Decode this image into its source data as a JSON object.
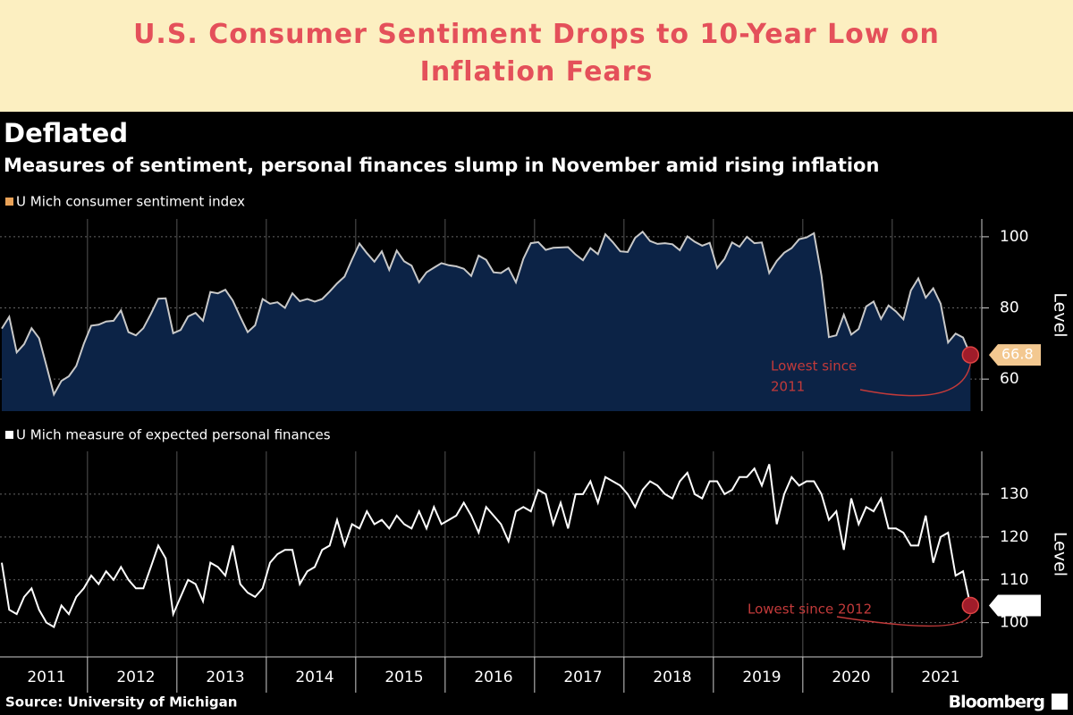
{
  "header": {
    "title": [
      "U.S. Consumer Sentiment Drops to 10-Year Low on",
      "Inflation Fears"
    ]
  },
  "chart_title": "Deflated",
  "chart_subtitle": "Measures of sentiment, personal finances slump in November amid rising inflation",
  "source": "Source: University of Michigan",
  "brand": "Bloomberg",
  "chart_data": [
    {
      "type": "area",
      "categories": [
        null,
        null,
        null,
        null,
        null,
        null,
        null,
        null,
        null,
        null,
        null,
        null,
        null,
        null,
        null,
        null,
        null,
        null,
        null,
        null,
        null,
        null,
        null,
        null,
        null,
        null,
        null,
        null,
        null,
        null,
        null,
        null,
        null,
        null,
        null,
        null,
        null,
        null,
        null,
        null,
        null,
        null,
        null,
        null,
        null,
        null,
        null,
        null,
        null,
        null,
        null,
        null,
        null,
        null,
        null,
        null,
        null,
        null,
        null,
        null,
        null,
        null,
        null,
        null,
        null,
        null,
        null,
        null,
        null,
        null,
        null,
        null,
        null,
        null,
        null,
        null,
        null,
        null,
        null,
        null,
        null,
        null,
        null,
        null,
        null,
        null,
        null,
        null,
        null,
        null,
        null,
        null,
        null,
        null,
        null,
        null,
        null,
        null,
        null,
        null,
        null,
        null,
        null,
        null,
        null,
        null,
        null,
        null,
        null,
        null,
        null,
        null,
        null,
        null,
        null,
        null,
        null,
        null,
        null,
        null,
        null,
        null,
        null,
        null,
        null,
        null,
        null,
        null,
        null,
        null,
        null
      ],
      "series": [
        {
          "name": "U Mich consumer sentiment index",
          "color": "#e9a258",
          "line_color": "#c9c9c9",
          "fill_color": "#0c2346",
          "values": [
            74.2,
            77.5,
            67.5,
            69.8,
            74.3,
            71.5,
            63.7,
            55.7,
            59.5,
            60.8,
            63.7,
            69.9,
            75.0,
            75.3,
            76.2,
            76.4,
            79.3,
            73.2,
            72.3,
            74.3,
            78.3,
            82.6,
            82.7,
            72.9,
            73.8,
            77.6,
            78.6,
            76.4,
            84.5,
            84.1,
            85.1,
            82.1,
            77.5,
            73.2,
            75.1,
            82.5,
            81.2,
            81.6,
            80.0,
            84.1,
            81.9,
            82.5,
            81.8,
            82.5,
            84.6,
            86.9,
            88.8,
            93.6,
            98.1,
            95.4,
            93.0,
            95.9,
            90.7,
            96.1,
            93.1,
            91.9,
            87.2,
            90.0,
            91.3,
            92.6,
            92.0,
            91.7,
            91.0,
            89.0,
            94.7,
            93.5,
            90.0,
            89.8,
            91.2,
            87.2,
            93.8,
            98.2,
            98.5,
            96.3,
            96.9,
            97.0,
            97.1,
            95.0,
            93.4,
            96.8,
            95.1,
            100.7,
            98.5,
            95.9,
            95.7,
            99.7,
            101.4,
            98.8,
            98.0,
            98.2,
            97.9,
            96.2,
            100.1,
            98.6,
            97.5,
            98.3,
            91.2,
            93.8,
            98.4,
            97.2,
            100.0,
            98.2,
            98.4,
            89.8,
            93.2,
            95.5,
            96.8,
            99.3,
            99.8,
            101.0,
            89.1,
            71.8,
            72.3,
            78.1,
            72.5,
            74.1,
            80.4,
            81.8,
            76.9,
            80.7,
            79.0,
            76.8,
            84.9,
            88.3,
            82.9,
            85.5,
            81.2,
            70.3,
            72.8,
            71.7,
            66.8
          ]
        }
      ],
      "ylim": [
        51,
        105
      ],
      "yticks": [
        60,
        80,
        100
      ],
      "ylabel": "Level",
      "grid": true,
      "annotation": [
        "Lowest since",
        "2011"
      ],
      "annotation_color": "#c23a3a",
      "callout_color": "#f3c890"
    },
    {
      "type": "line",
      "categories": [
        null,
        null,
        null,
        null,
        null,
        null,
        "2011",
        null,
        null,
        null,
        null,
        null,
        null,
        null,
        null,
        null,
        null,
        null,
        "2012",
        null,
        null,
        null,
        null,
        null,
        null,
        null,
        null,
        null,
        null,
        null,
        "2013",
        null,
        null,
        null,
        null,
        null,
        null,
        null,
        null,
        null,
        null,
        null,
        "2014",
        null,
        null,
        null,
        null,
        null,
        null,
        null,
        null,
        null,
        null,
        null,
        "2015",
        null,
        null,
        null,
        null,
        null,
        null,
        null,
        null,
        null,
        null,
        null,
        "2016",
        null,
        null,
        null,
        null,
        null,
        null,
        null,
        null,
        null,
        null,
        null,
        "2017",
        null,
        null,
        null,
        null,
        null,
        null,
        null,
        null,
        null,
        null,
        null,
        "2018",
        null,
        null,
        null,
        null,
        null,
        null,
        null,
        null,
        null,
        null,
        null,
        "2019",
        null,
        null,
        null,
        null,
        null,
        null,
        null,
        null,
        null,
        null,
        null,
        "2020",
        null,
        null,
        null,
        null,
        null,
        null,
        null,
        null,
        null,
        null,
        null,
        "2021",
        null,
        null,
        null,
        null
      ],
      "series": [
        {
          "name": "U Mich measure of expected personal finances",
          "color": "#ffffff",
          "line_color": "#ffffff",
          "values": [
            114,
            103,
            102,
            106,
            108,
            103,
            100,
            99,
            104,
            102,
            106,
            108,
            111,
            109,
            112,
            110,
            113,
            110,
            108,
            108,
            113,
            118,
            115,
            102,
            106,
            110,
            109,
            105,
            114,
            113,
            111,
            118,
            109,
            107,
            106,
            108,
            114,
            116,
            117,
            117,
            109,
            112,
            113,
            117,
            118,
            124,
            118,
            123,
            122,
            126,
            123,
            124,
            122,
            125,
            123,
            122,
            126,
            122,
            127,
            123,
            124,
            125,
            128,
            125,
            121,
            127,
            125,
            123,
            119,
            126,
            127,
            126,
            131,
            130,
            123,
            128,
            122,
            130,
            130,
            133,
            128,
            134,
            133,
            132,
            130,
            127,
            131,
            133,
            132,
            130,
            129,
            133,
            135,
            130,
            129,
            133,
            133,
            130,
            131,
            134,
            134,
            136,
            132,
            137,
            123,
            130,
            134,
            132,
            133,
            133,
            130,
            124,
            126,
            117,
            129,
            123,
            127,
            126,
            129,
            122,
            122,
            121,
            118,
            118,
            125,
            114,
            120,
            121,
            111,
            112,
            104
          ]
        }
      ],
      "ylim": [
        92,
        140
      ],
      "yticks": [
        100,
        110,
        120,
        130
      ],
      "ylabel": "Level",
      "grid": true,
      "annotation": [
        "Lowest since 2012"
      ],
      "annotation_color": "#c23a3a",
      "callout_color": "#ffffff"
    }
  ]
}
